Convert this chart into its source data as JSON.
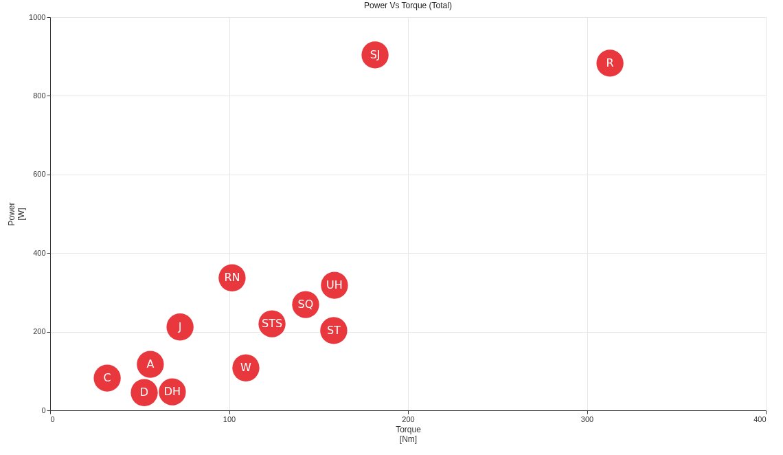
{
  "chart_data": {
    "type": "scatter",
    "title": "Power Vs Torque (Total)",
    "xlabel": "Torque\n[Nm]",
    "ylabel": "Power\n[W]",
    "x": [
      181.6,
      312.9,
      101.7,
      158.9,
      142.8,
      124,
      158.5,
      72.6,
      109.4,
      56,
      31.9,
      52.6,
      68.3
    ],
    "series": [
      {
        "color": "#e8383d",
        "values": [
          904,
          883,
          337,
          318,
          269,
          220,
          203,
          212,
          108,
          117,
          82,
          45,
          47
        ]
      }
    ],
    "annotations": [
      {
        "text": "SJ",
        "x": 181.6,
        "y": 904
      },
      {
        "text": "R",
        "x": 312.9,
        "y": 883
      },
      {
        "text": "RN",
        "x": 101.7,
        "y": 337
      },
      {
        "text": "UH",
        "x": 158.9,
        "y": 318
      },
      {
        "text": "SQ",
        "x": 142.8,
        "y": 269
      },
      {
        "text": "STS",
        "x": 124,
        "y": 220
      },
      {
        "text": "ST",
        "x": 158.5,
        "y": 203
      },
      {
        "text": "J",
        "x": 72.6,
        "y": 212
      },
      {
        "text": "W",
        "x": 109.4,
        "y": 108
      },
      {
        "text": "A",
        "x": 56,
        "y": 117
      },
      {
        "text": "C",
        "x": 31.9,
        "y": 82
      },
      {
        "text": "D",
        "x": 52.6,
        "y": 45
      },
      {
        "text": "DH",
        "x": 68.3,
        "y": 47
      }
    ],
    "xlim": [
      0,
      400
    ],
    "xticks": [
      0,
      100,
      200,
      300,
      400
    ],
    "ylim": [
      0,
      1000
    ],
    "yticks": [
      0,
      200,
      400,
      600,
      800,
      1000
    ],
    "grid": true,
    "marker": "circle"
  }
}
